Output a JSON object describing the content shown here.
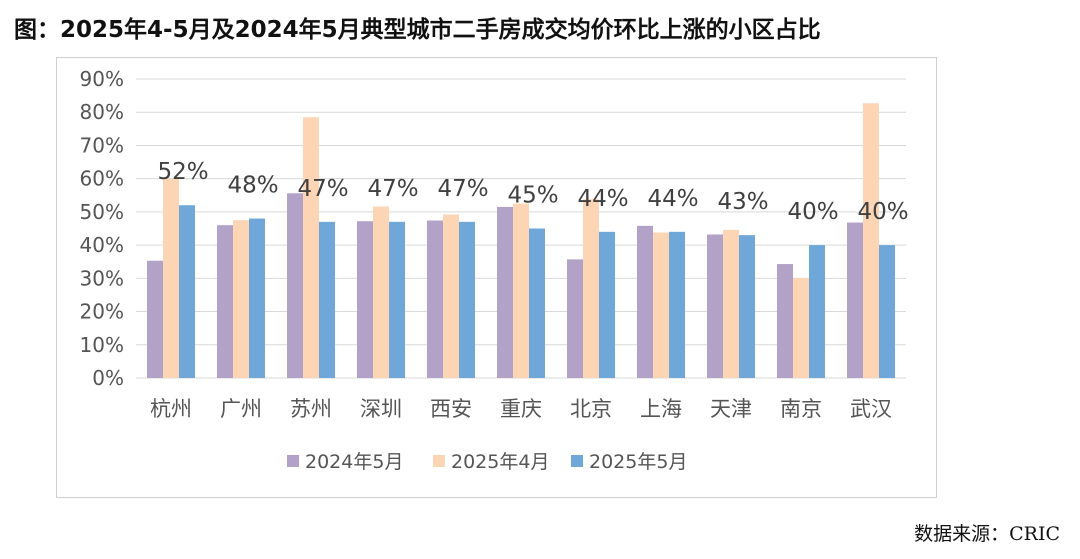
{
  "title": "图：2025年4-5月及2024年5月典型城市二手房成交均价环比上涨的小区占比",
  "source": "数据来源：CRIC",
  "colors": {
    "s2024_5": "#b3a2c7",
    "s2025_4": "#fcd5b5",
    "s2025_5": "#6ea7d8",
    "grid": "#d9d9d9",
    "axis_text": "#555555",
    "label_text": "#404040"
  },
  "chart_data": {
    "type": "bar",
    "title": "图：2025年4-5月及2024年5月典型城市二手房成交均价环比上涨的小区占比",
    "xlabel": "",
    "ylabel": "",
    "ylim": [
      0,
      90
    ],
    "y_ticks": [
      "0%",
      "10%",
      "20%",
      "30%",
      "40%",
      "50%",
      "60%",
      "70%",
      "80%",
      "90%"
    ],
    "grid": true,
    "legend_position": "bottom",
    "categories": [
      "杭州",
      "广州",
      "苏州",
      "深圳",
      "西安",
      "重庆",
      "北京",
      "上海",
      "天津",
      "南京",
      "武汉"
    ],
    "series": [
      {
        "name": "2024年5月",
        "values": [
          35.3,
          46,
          55.6,
          47.2,
          47.4,
          51.5,
          35.7,
          45.8,
          43.2,
          34.3,
          46.8
        ]
      },
      {
        "name": "2025年4月",
        "values": [
          60,
          47.5,
          78.5,
          51.6,
          49.2,
          52.5,
          53.8,
          43.8,
          44.6,
          30.1,
          82.7
        ]
      },
      {
        "name": "2025年5月",
        "values": [
          52,
          48,
          47,
          47,
          47,
          45,
          44,
          44,
          43,
          40,
          40
        ]
      }
    ],
    "data_labels": [
      "52%",
      "48%",
      "47%",
      "47%",
      "47%",
      "45%",
      "44%",
      "44%",
      "43%",
      "40%",
      "40%"
    ]
  }
}
